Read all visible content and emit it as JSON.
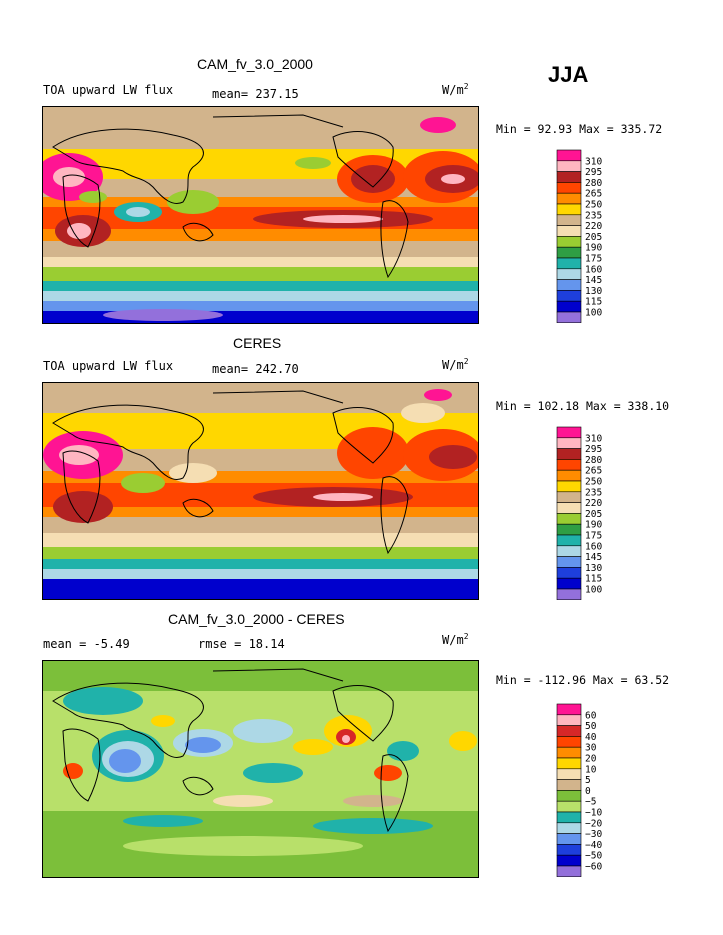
{
  "season": "JJA",
  "panels": [
    {
      "id": "model",
      "title": "CAM_fv_3.0_2000",
      "left_label": "TOA upward LW flux",
      "center_label": "mean= 237.15",
      "unit": "W/m",
      "unit_sup": "2",
      "stats": "Min =  92.93 Max = 335.72"
    },
    {
      "id": "obs",
      "title": "CERES",
      "left_label": "TOA upward LW flux",
      "center_label": "mean= 242.70",
      "unit": "W/m",
      "unit_sup": "2",
      "stats": "Min = 102.18 Max = 338.10"
    },
    {
      "id": "diff",
      "title": "CAM_fv_3.0_2000 - CERES",
      "left_label": "mean =  -5.49",
      "center_label": "rmse =  18.14",
      "unit": "W/m",
      "unit_sup": "2",
      "stats": "Min = -112.96 Max =  63.52"
    }
  ],
  "chart_data": [
    {
      "type": "heatmap",
      "title": "CAM_fv_3.0_2000",
      "variable": "TOA upward LW flux",
      "unit": "W/m2",
      "mean": 237.15,
      "min": 92.93,
      "max": 335.72,
      "colorbar_levels": [
        "310",
        "295",
        "280",
        "265",
        "250",
        "235",
        "220",
        "205",
        "190",
        "175",
        "160",
        "145",
        "130",
        "115",
        "100"
      ],
      "colorbar_colors": [
        "#ff1493",
        "#ffb6c1",
        "#b22222",
        "#ff4500",
        "#ff8c00",
        "#ffd700",
        "#d2b48c",
        "#f5deb3",
        "#9acd32",
        "#2f9e44",
        "#20b2aa",
        "#add8e6",
        "#6495ed",
        "#1e3fdc",
        "#0000cd",
        "#9370db"
      ]
    },
    {
      "type": "heatmap",
      "title": "CERES",
      "variable": "TOA upward LW flux",
      "unit": "W/m2",
      "mean": 242.7,
      "min": 102.18,
      "max": 338.1,
      "colorbar_levels": [
        "310",
        "295",
        "280",
        "265",
        "250",
        "235",
        "220",
        "205",
        "190",
        "175",
        "160",
        "145",
        "130",
        "115",
        "100"
      ],
      "colorbar_colors": [
        "#ff1493",
        "#ffb6c1",
        "#b22222",
        "#ff4500",
        "#ff8c00",
        "#ffd700",
        "#d2b48c",
        "#f5deb3",
        "#9acd32",
        "#2f9e44",
        "#20b2aa",
        "#add8e6",
        "#6495ed",
        "#1e3fdc",
        "#0000cd",
        "#9370db"
      ]
    },
    {
      "type": "heatmap",
      "title": "CAM_fv_3.0_2000 - CERES",
      "unit": "W/m2",
      "mean": -5.49,
      "rmse": 18.14,
      "min": -112.96,
      "max": 63.52,
      "colorbar_levels": [
        "60",
        "50",
        "40",
        "30",
        "20",
        "10",
        "5",
        "0",
        "−5",
        "−10",
        "−20",
        "−30",
        "−40",
        "−50",
        "−60"
      ],
      "colorbar_colors": [
        "#ff1493",
        "#ffb6c1",
        "#d62728",
        "#ff4500",
        "#ff8c00",
        "#ffd700",
        "#f5deb3",
        "#d2b48c",
        "#7cbf3a",
        "#b8e06a",
        "#20b2aa",
        "#add8e6",
        "#6495ed",
        "#1e3fdc",
        "#0000cd",
        "#9370db"
      ]
    }
  ]
}
